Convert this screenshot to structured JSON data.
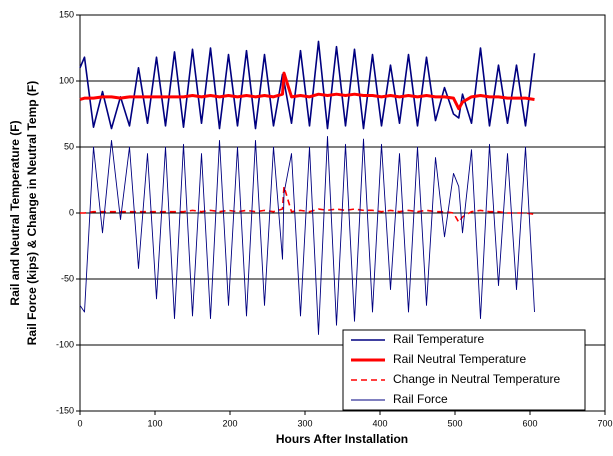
{
  "chart_data": {
    "type": "line",
    "xlabel": "Hours After Installation",
    "ylabel": [
      "Rail and Neutral Temperature (F)",
      "Rail Force (kips) & Change in Neutral Temp (F)"
    ],
    "x": [
      0,
      6,
      18,
      30,
      42,
      54,
      66,
      78,
      90,
      102,
      114,
      126,
      138,
      150,
      162,
      174,
      186,
      198,
      210,
      222,
      234,
      246,
      258,
      270,
      272,
      282,
      294,
      306,
      318,
      330,
      342,
      354,
      366,
      378,
      390,
      402,
      414,
      426,
      438,
      450,
      462,
      474,
      486,
      498,
      505,
      510,
      522,
      534,
      546,
      558,
      570,
      582,
      594,
      606
    ],
    "series": [
      {
        "name": "Rail Temperature",
        "color": "#000080",
        "linestyle": "solid",
        "values": [
          110,
          118,
          65,
          92,
          64,
          88,
          66,
          110,
          68,
          118,
          66,
          122,
          65,
          124,
          68,
          125,
          64,
          120,
          66,
          123,
          64,
          120,
          66,
          105,
          100,
          68,
          123,
          66,
          130,
          64,
          126,
          66,
          124,
          64,
          120,
          66,
          112,
          68,
          120,
          66,
          118,
          70,
          95,
          75,
          72,
          90,
          68,
          125,
          66,
          112,
          68,
          112,
          66,
          121
        ]
      },
      {
        "name": "Rail Neutral Temperature",
        "color": "#ff0000",
        "linestyle": "solid",
        "values": [
          86,
          87,
          87,
          88,
          88,
          87,
          88,
          88,
          88,
          88,
          88,
          88,
          88,
          89,
          88,
          89,
          88,
          89,
          88,
          89,
          88,
          89,
          88,
          90,
          106,
          88,
          89,
          88,
          90,
          89,
          90,
          89,
          90,
          89,
          89,
          88,
          89,
          88,
          89,
          88,
          89,
          88,
          88,
          87,
          79,
          84,
          88,
          89,
          88,
          88,
          87,
          87,
          87,
          86
        ]
      },
      {
        "name": "Change in Neutral Temperature",
        "color": "#ff0000",
        "linestyle": "dashed",
        "values": [
          0,
          0,
          1,
          1,
          1,
          1,
          1,
          1,
          1,
          1,
          1,
          1,
          1,
          2,
          1,
          2,
          1,
          2,
          1,
          2,
          1,
          2,
          1,
          3,
          20,
          1,
          2,
          1,
          3,
          2,
          3,
          2,
          3,
          2,
          2,
          1,
          2,
          1,
          2,
          1,
          2,
          1,
          1,
          0,
          -7,
          -3,
          1,
          2,
          1,
          1,
          0,
          0,
          0,
          -1
        ]
      },
      {
        "name": "Rail Force",
        "color": "#000080",
        "linestyle": "solid",
        "values": [
          -70,
          -75,
          50,
          -15,
          55,
          -5,
          50,
          -42,
          45,
          -65,
          50,
          -80,
          52,
          -78,
          45,
          -80,
          55,
          -70,
          50,
          -78,
          55,
          -70,
          50,
          -35,
          15,
          45,
          -78,
          50,
          -92,
          58,
          -85,
          52,
          -82,
          56,
          -75,
          52,
          -58,
          45,
          -75,
          50,
          -70,
          42,
          -18,
          30,
          20,
          -15,
          48,
          -80,
          52,
          -55,
          45,
          -58,
          50,
          -75
        ]
      }
    ],
    "xlim": [
      0,
      700
    ],
    "xticks": [
      0,
      100,
      200,
      300,
      400,
      500,
      600,
      700
    ],
    "ylim": [
      -150,
      150
    ],
    "yticks": [
      -150,
      -100,
      -50,
      0,
      50,
      100,
      150
    ],
    "grid": true,
    "legend": "lower right"
  }
}
